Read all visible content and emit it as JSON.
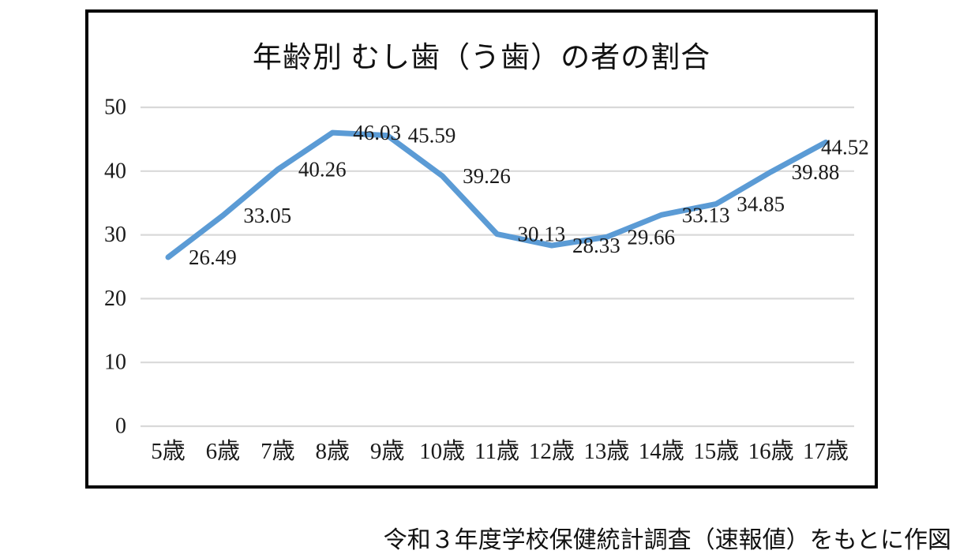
{
  "chart_data": {
    "type": "line",
    "title": "年齢別 むし歯（う歯）の者の割合",
    "categories": [
      "5歳",
      "6歳",
      "7歳",
      "8歳",
      "9歳",
      "10歳",
      "11歳",
      "12歳",
      "13歳",
      "14歳",
      "15歳",
      "16歳",
      "17歳"
    ],
    "values": [
      26.49,
      33.05,
      40.26,
      46.03,
      45.59,
      39.26,
      30.13,
      28.33,
      29.66,
      33.13,
      34.85,
      39.88,
      44.52
    ],
    "data_labels": [
      "26.49",
      "33.05",
      "40.26",
      "46.03",
      "45.59",
      "39.26",
      "30.13",
      "28.33",
      "29.66",
      "33.13",
      "34.85",
      "39.88",
      "44.52"
    ],
    "xlabel": "",
    "ylabel": "",
    "ylim": [
      0,
      50
    ],
    "yticks": [
      0,
      10,
      20,
      30,
      40,
      50
    ],
    "ytick_labels": [
      "0",
      "10",
      "20",
      "30",
      "40",
      "50"
    ],
    "grid": "horizontal",
    "legend": "none",
    "line_color": "#5B9BD5",
    "gridline_color": "#D9D9D9",
    "frame_color": "#000000"
  },
  "caption": "令和３年度学校保健統計調査（速報値）をもとに作図"
}
